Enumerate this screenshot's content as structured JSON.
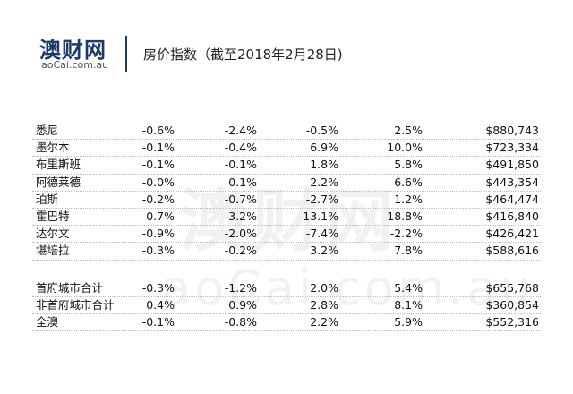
{
  "header": {
    "logo": "澳财网",
    "logo_sub": "aoCai.com.au",
    "title": "房价指数（截至2018年2月28日)"
  },
  "watermark": {
    "text": "澳财网",
    "sub": "aoCai.com.au"
  },
  "table": {
    "groups": [
      {
        "rows": [
          [
            "悉尼",
            "-0.6%",
            "-2.4%",
            "-0.5%",
            "2.5%",
            "$880,743"
          ],
          [
            "墨尔本",
            "-0.1%",
            "-0.4%",
            "6.9%",
            "10.0%",
            "$723,334"
          ],
          [
            "布里斯班",
            "-0.1%",
            "-0.1%",
            "1.8%",
            "5.8%",
            "$491,850"
          ],
          [
            "阿德莱德",
            "-0.0%",
            "0.1%",
            "2.2%",
            "6.6%",
            "$443,354"
          ],
          [
            "珀斯",
            "-0.2%",
            "-0.7%",
            "-2.7%",
            "1.2%",
            "$464,474"
          ],
          [
            "霍巴特",
            "0.7%",
            "3.2%",
            "13.1%",
            "18.8%",
            "$416,840"
          ],
          [
            "达尔文",
            "-0.9%",
            "-2.0%",
            "-7.4%",
            "-2.2%",
            "$426,421"
          ],
          [
            "堪培拉",
            "-0.3%",
            "-0.2%",
            "3.2%",
            "7.8%",
            "$588,616"
          ]
        ]
      },
      {
        "rows": [
          [
            "首府城市合计",
            "-0.3%",
            "-1.2%",
            "2.0%",
            "5.4%",
            "$655,768"
          ],
          [
            "非首府城市合计",
            "0.4%",
            "0.9%",
            "2.8%",
            "8.1%",
            "$360,854"
          ],
          [
            "全澳",
            "-0.1%",
            "-0.8%",
            "2.2%",
            "5.9%",
            "$552,316"
          ]
        ]
      }
    ]
  }
}
